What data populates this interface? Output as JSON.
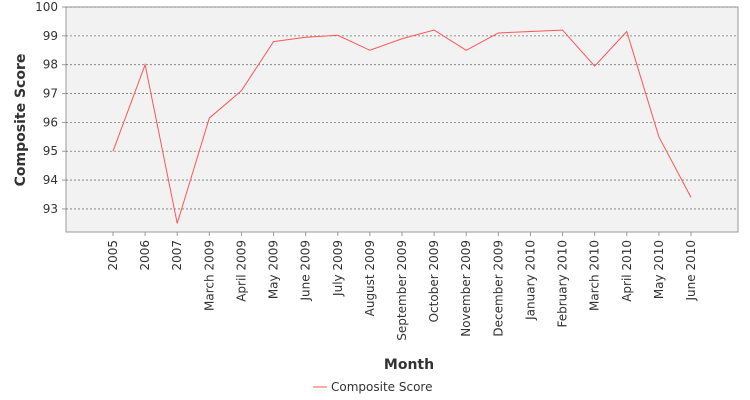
{
  "chart_data": {
    "type": "line",
    "x_label": "Month",
    "y_label": "Composite Score",
    "categories": [
      "2005",
      "2006",
      "2007",
      "March 2009",
      "April 2009",
      "May 2009",
      "June 2009",
      "July 2009",
      "August 2009",
      "September 2009",
      "October 2009",
      "November 2009",
      "December 2009",
      "January 2010",
      "February 2010",
      "March 2010",
      "April 2010",
      "May 2010",
      "June 2010"
    ],
    "series": [
      {
        "name": "Composite Score",
        "color": "#ff5555",
        "values": [
          95.0,
          98.0,
          92.5,
          96.15,
          97.1,
          98.8,
          98.95,
          99.02,
          98.5,
          98.9,
          99.2,
          98.5,
          99.1,
          99.15,
          99.2,
          97.95,
          99.15,
          95.5,
          93.4
        ]
      }
    ],
    "ylim": [
      92.2,
      100
    ],
    "yticks": [
      93,
      94,
      95,
      96,
      97,
      98,
      99,
      100
    ],
    "grid": true,
    "legend": "bottom"
  }
}
